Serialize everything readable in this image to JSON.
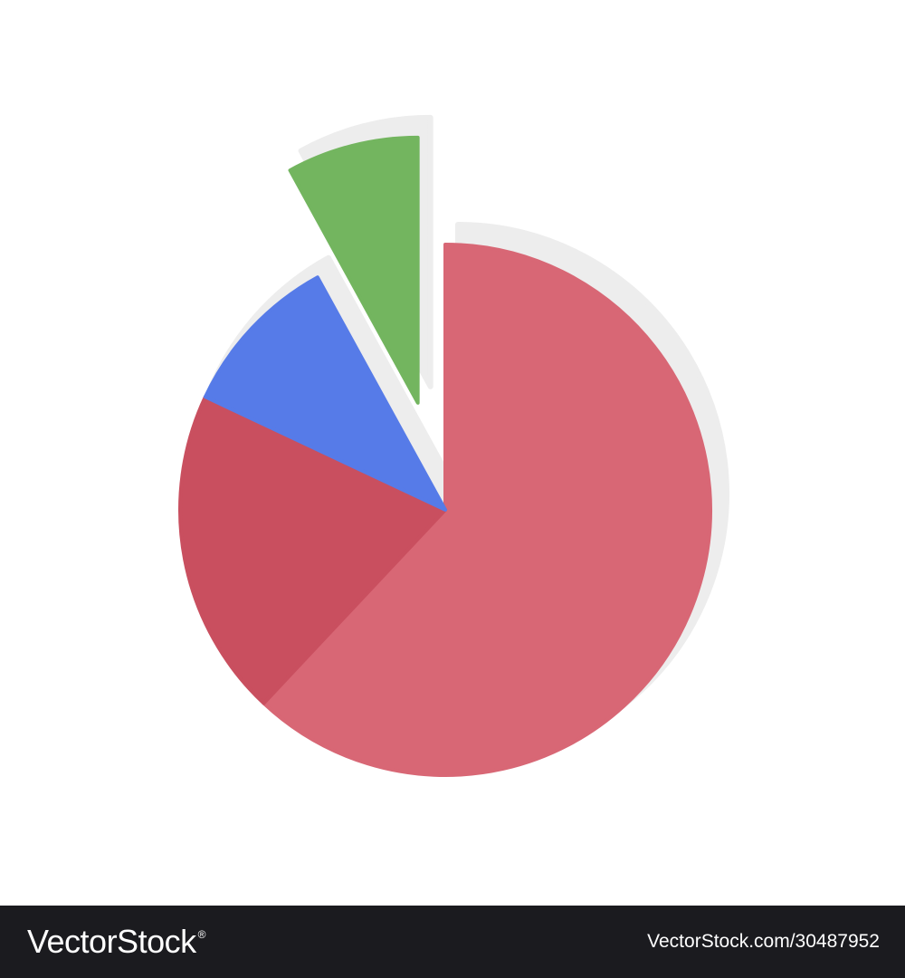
{
  "chart_data": {
    "type": "pie",
    "title": "",
    "legend": "none",
    "slices": [
      {
        "value": 62,
        "color": "#d86775",
        "exploded": false
      },
      {
        "value": 20,
        "color": "#c94f5f",
        "exploded": false
      },
      {
        "value": 10,
        "color": "#567be8",
        "exploded": false
      },
      {
        "value": 8,
        "color": "#73b55f",
        "exploded": true
      }
    ],
    "shadow_color": "#ededed"
  },
  "footer": {
    "brand": "VectorStock",
    "registered_mark": "®",
    "image_id": "VectorStock.com/30487952",
    "background_color": "#1b1b1f"
  }
}
